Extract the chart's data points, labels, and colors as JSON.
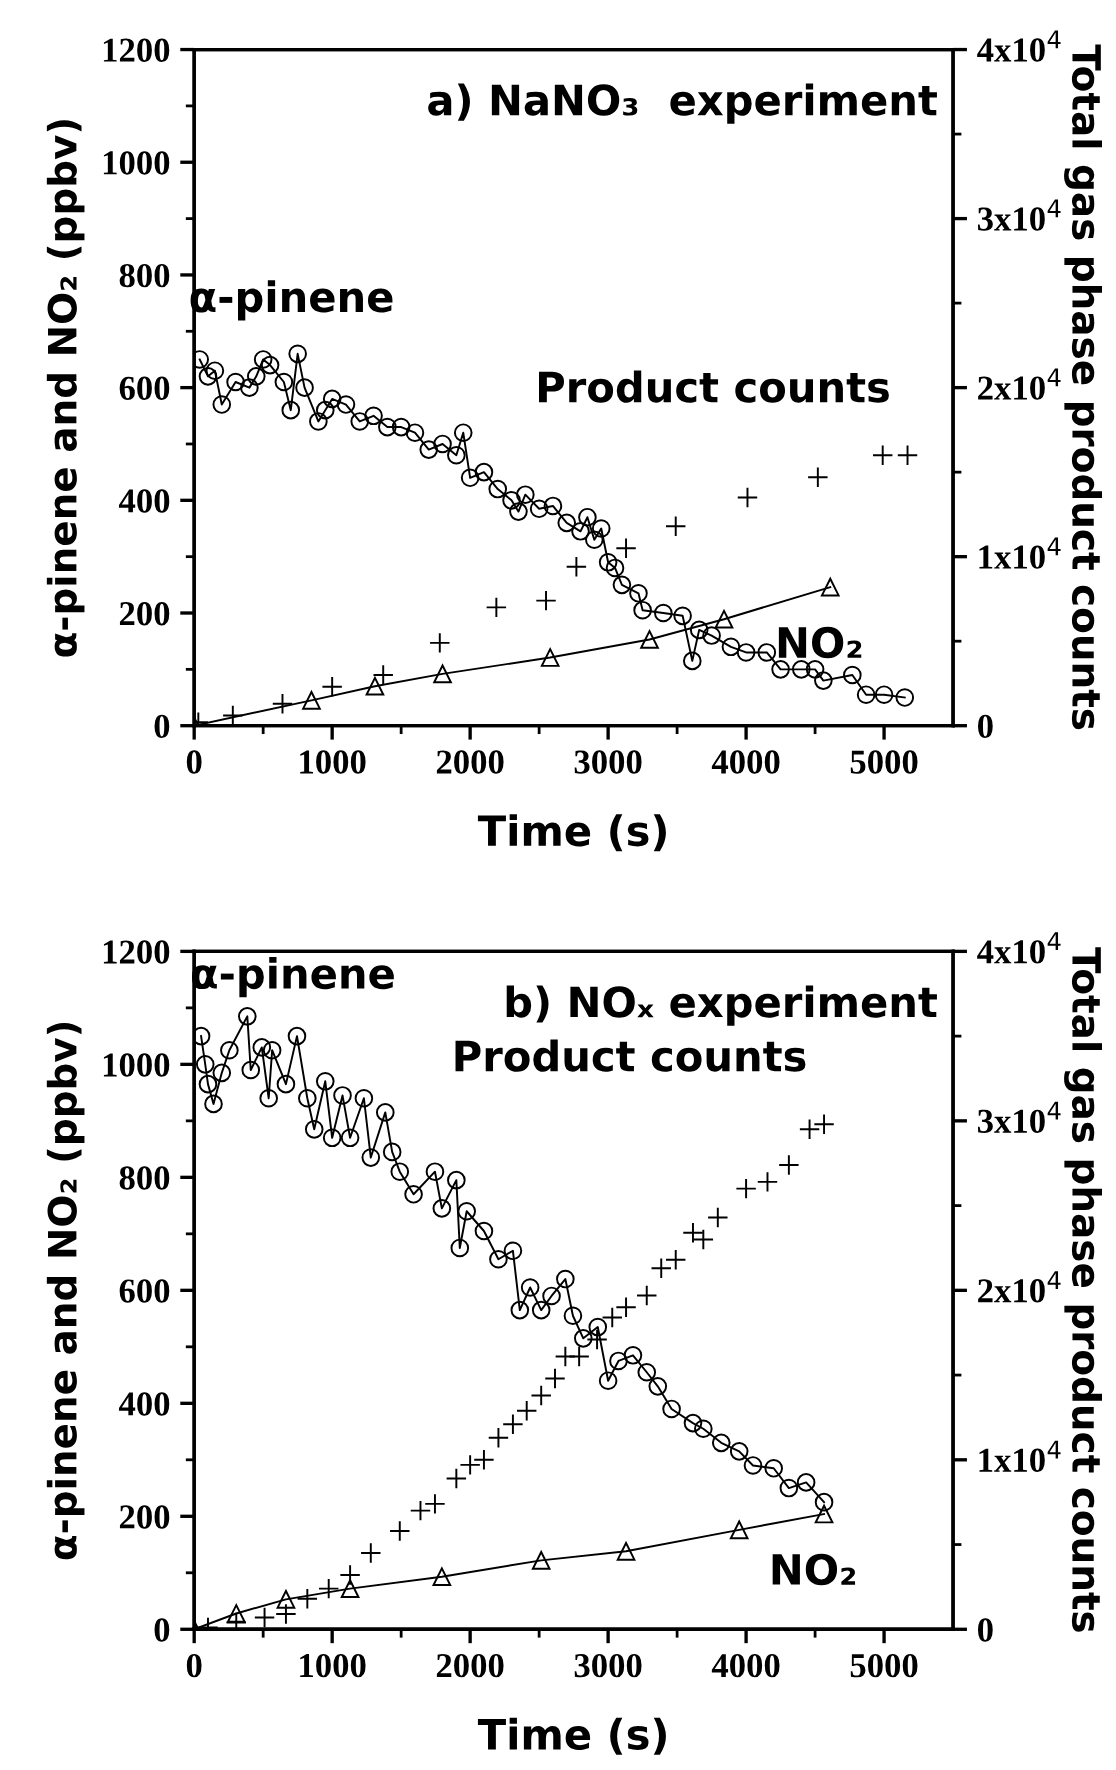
{
  "chart_data": [
    {
      "type": "line",
      "title": "a) NaNO₃  experiment",
      "xlabel": "Time (s)",
      "ylabel": "α-pinene and NO₂ (ppbv)",
      "y2label": "Total gas phase product counts",
      "xlim": [
        0,
        5500
      ],
      "xticks": [
        0,
        {
          "value": 500,
          "label": null
        },
        1000,
        {
          "value": 1500,
          "label": null
        },
        2000,
        {
          "value": 2500,
          "label": null
        },
        3000,
        {
          "value": 3500,
          "label": null
        },
        4000,
        {
          "value": 4500,
          "label": null
        },
        5000
      ],
      "ylim": [
        0,
        1200
      ],
      "yticks": [
        0,
        {
          "value": 100,
          "label": null
        },
        200,
        {
          "value": 300,
          "label": null
        },
        400,
        {
          "value": 500,
          "label": null
        },
        600,
        {
          "value": 700,
          "label": null
        },
        800,
        {
          "value": 900,
          "label": null
        },
        1000,
        {
          "value": 1100,
          "label": null
        },
        1200
      ],
      "y2lim": [
        0,
        40000
      ],
      "y2ticks": [
        0,
        {
          "value": 5000,
          "label": null
        },
        {
          "value": 10000,
          "label": "1x10$^{4}$"
        },
        {
          "value": 15000,
          "label": null
        },
        {
          "value": 20000,
          "label": "2x10$^{4}$"
        },
        {
          "value": 25000,
          "label": null
        },
        {
          "value": 30000,
          "label": "3x10$^{4}$"
        },
        {
          "value": 35000,
          "label": null
        },
        {
          "value": 40000,
          "label": "4x10$^{4}$"
        }
      ],
      "grid": false,
      "legend": false,
      "series": [
        {
          "name": "α-pinene",
          "type": "line",
          "marker": "circle",
          "color": "#000000",
          "x": [
            40,
            100,
            150,
            200,
            300,
            400,
            450,
            500,
            550,
            650,
            700,
            750,
            800,
            900,
            950,
            1000,
            1100,
            1200,
            1300,
            1400,
            1500,
            1600,
            1700,
            1800,
            1900,
            1950,
            2000,
            2100,
            2200,
            2300,
            2350,
            2400,
            2500,
            2600,
            2700,
            2800,
            2850,
            2900,
            2950,
            3000,
            3050,
            3100,
            3220,
            3250,
            3400,
            3540,
            3610,
            3660,
            3750,
            3890,
            4000,
            4150,
            4250,
            4400,
            4500,
            4560,
            4770,
            4870,
            5000,
            5150
          ],
          "values": [
            650,
            620,
            630,
            570,
            610,
            600,
            620,
            650,
            640,
            610,
            560,
            660,
            600,
            540,
            560,
            580,
            570,
            540,
            550,
            530,
            530,
            520,
            490,
            500,
            480,
            520,
            440,
            450,
            420,
            400,
            380,
            410,
            385,
            390,
            360,
            345,
            370,
            330,
            350,
            290,
            280,
            250,
            235,
            205,
            200,
            195,
            115,
            170,
            160,
            140,
            130,
            130,
            100,
            100,
            100,
            80,
            90,
            55,
            55,
            50
          ]
        },
        {
          "name": "NO₂",
          "type": "line",
          "marker": "triangle",
          "color": "#000000",
          "x": [
            0,
            850,
            1310,
            1800,
            2580,
            3300,
            3840,
            4610
          ],
          "values": [
            0,
            45,
            70,
            92,
            121,
            153,
            189,
            246
          ]
        },
        {
          "name": "Product counts",
          "type": "scatter",
          "marker": "cross",
          "color": "#000000",
          "axis": "y2",
          "x": [
            30,
            280,
            640,
            1000,
            1370,
            1780,
            2190,
            2550,
            2770,
            3130,
            3490,
            4010,
            4520,
            4990,
            5170
          ],
          "values": [
            200,
            600,
            1300,
            2300,
            3000,
            4900,
            7000,
            7400,
            9400,
            10500,
            11800,
            13500,
            14700,
            16000,
            16000
          ]
        }
      ]
    },
    {
      "type": "line",
      "title": "b) NOₓ experiment",
      "xlabel": "Time (s)",
      "ylabel": "α-pinene and NO₂ (ppbv)",
      "y2label": "Total gas phase product counts",
      "xlim": [
        0,
        5500
      ],
      "xticks": [
        0,
        {
          "value": 500,
          "label": null
        },
        1000,
        {
          "value": 1500,
          "label": null
        },
        2000,
        {
          "value": 2500,
          "label": null
        },
        3000,
        {
          "value": 3500,
          "label": null
        },
        4000,
        {
          "value": 4500,
          "label": null
        },
        5000
      ],
      "ylim": [
        0,
        1200
      ],
      "yticks": [
        0,
        {
          "value": 100,
          "label": null
        },
        200,
        {
          "value": 300,
          "label": null
        },
        400,
        {
          "value": 500,
          "label": null
        },
        600,
        {
          "value": 700,
          "label": null
        },
        800,
        {
          "value": 900,
          "label": null
        },
        1000,
        {
          "value": 1100,
          "label": null
        },
        1200
      ],
      "y2lim": [
        0,
        40000
      ],
      "y2ticks": [
        0,
        {
          "value": 5000,
          "label": null
        },
        {
          "value": 10000,
          "label": "1x10$^{4}$"
        },
        {
          "value": 15000,
          "label": null
        },
        {
          "value": 20000,
          "label": "2x10$^{4}$"
        },
        {
          "value": 25000,
          "label": null
        },
        {
          "value": 30000,
          "label": "3x10$^{4}$"
        },
        {
          "value": 35000,
          "label": null
        },
        {
          "value": 40000,
          "label": "4x10$^{4}$"
        }
      ],
      "grid": false,
      "legend": false,
      "series": [
        {
          "name": "α-pinene",
          "type": "line",
          "marker": "circle",
          "color": "#000000",
          "x": [
            50,
            80,
            100,
            140,
            200,
            255,
            385,
            410,
            490,
            540,
            565,
            665,
            745,
            820,
            870,
            950,
            1000,
            1075,
            1130,
            1230,
            1280,
            1385,
            1435,
            1490,
            1590,
            1745,
            1795,
            1900,
            1925,
            1975,
            2100,
            2205,
            2310,
            2360,
            2435,
            2515,
            2590,
            2690,
            2745,
            2820,
            2925,
            3000,
            3075,
            3180,
            3280,
            3360,
            3460,
            3615,
            3690,
            3820,
            3950,
            4050,
            4200,
            4310,
            4435,
            4565
          ],
          "values": [
            1050,
            1000,
            965,
            930,
            985,
            1025,
            1085,
            990,
            1030,
            940,
            1025,
            965,
            1050,
            940,
            885,
            970,
            870,
            945,
            870,
            940,
            835,
            915,
            845,
            810,
            770,
            810,
            745,
            795,
            675,
            740,
            705,
            655,
            670,
            565,
            605,
            565,
            590,
            620,
            555,
            515,
            535,
            440,
            475,
            485,
            455,
            430,
            390,
            365,
            355,
            330,
            315,
            290,
            285,
            250,
            260,
            225
          ]
        },
        {
          "name": "NO₂",
          "type": "line",
          "marker": "triangle",
          "color": "#000000",
          "x": [
            0,
            305,
            665,
            1130,
            1795,
            2515,
            3130,
            3950,
            4565
          ],
          "values": [
            0,
            28,
            53,
            72,
            93,
            122,
            138,
            176,
            204
          ]
        },
        {
          "name": "Product counts",
          "type": "scatter",
          "marker": "cross",
          "color": "#000000",
          "axis": "y2",
          "x": [
            100,
            305,
            510,
            665,
            820,
            975,
            1130,
            1280,
            1490,
            1640,
            1745,
            1900,
            2000,
            2100,
            2205,
            2310,
            2410,
            2515,
            2615,
            2690,
            2790,
            2920,
            3030,
            3130,
            3280,
            3385,
            3490,
            3615,
            3690,
            3795,
            4000,
            4155,
            4310,
            4460,
            4565
          ],
          "values": [
            100,
            400,
            700,
            900,
            1800,
            2400,
            3200,
            4500,
            5800,
            7000,
            7400,
            8900,
            9700,
            10000,
            11300,
            12100,
            12900,
            13800,
            14800,
            16100,
            16100,
            17100,
            18400,
            19000,
            19700,
            21300,
            21800,
            23400,
            23000,
            24300,
            26000,
            26400,
            27400,
            29500,
            29800
          ]
        }
      ]
    }
  ]
}
